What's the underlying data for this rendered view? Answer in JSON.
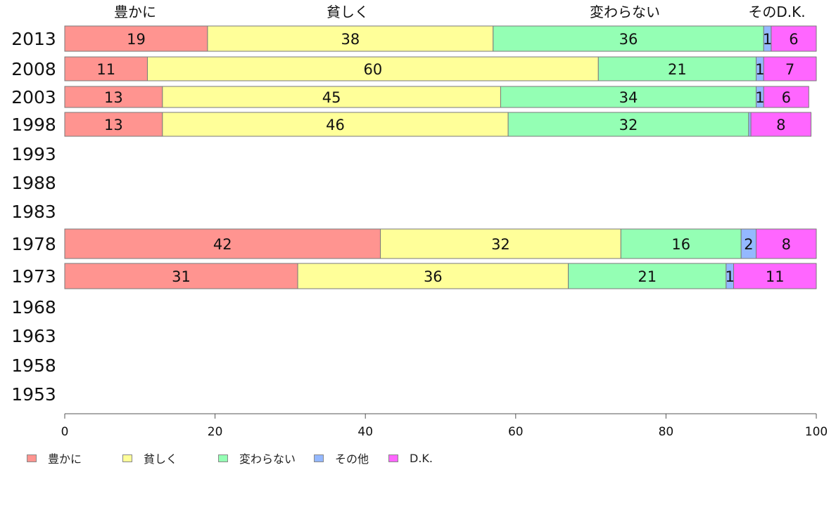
{
  "chart_data": {
    "type": "bar",
    "orientation": "horizontal",
    "stacked": true,
    "categories": [
      "2013",
      "2008",
      "2003",
      "1998",
      "1993",
      "1988",
      "1983",
      "1978",
      "1973",
      "1968",
      "1963",
      "1958",
      "1953"
    ],
    "series": [
      {
        "name": "豊かに",
        "color": "#ff9490",
        "values": [
          19,
          11,
          13,
          13,
          null,
          null,
          null,
          42,
          31,
          null,
          null,
          null,
          null
        ]
      },
      {
        "name": "貧しく",
        "color": "#ffff99",
        "values": [
          38,
          60,
          45,
          46,
          null,
          null,
          null,
          32,
          36,
          null,
          null,
          null,
          null
        ]
      },
      {
        "name": "変わらない",
        "color": "#94ffb4",
        "values": [
          36,
          21,
          34,
          32,
          null,
          null,
          null,
          16,
          21,
          null,
          null,
          null,
          null
        ]
      },
      {
        "name": "その他",
        "color": "#94b8ff",
        "values": [
          1,
          1,
          1,
          0.3,
          null,
          null,
          null,
          2,
          1,
          null,
          null,
          null,
          null
        ]
      },
      {
        "name": "D.K.",
        "color": "#ff66ff",
        "values": [
          6,
          7,
          6,
          8,
          null,
          null,
          null,
          8,
          11,
          null,
          null,
          null,
          null
        ]
      }
    ],
    "data_labels": [
      [
        "19",
        "38",
        "36",
        "1",
        "6"
      ],
      [
        "11",
        "60",
        "21",
        "1",
        "7"
      ],
      [
        "13",
        "45",
        "34",
        "1",
        "6"
      ],
      [
        "13",
        "46",
        "32",
        "",
        "8"
      ],
      [],
      [],
      [],
      [
        "42",
        "32",
        "16",
        "2",
        "8"
      ],
      [
        "31",
        "36",
        "21",
        "1",
        "11"
      ],
      [],
      [],
      [],
      []
    ],
    "top_labels": [
      "豊かに",
      "貧しく",
      "変わらない",
      "そのD.K."
    ],
    "xlim": [
      0,
      100
    ],
    "xticks": [
      0,
      20,
      40,
      60,
      80,
      100
    ],
    "grid": false,
    "legend_position": "bottom-left"
  },
  "legend": {
    "items": [
      {
        "label": "豊かに",
        "color": "#ff9490"
      },
      {
        "label": "貧しく",
        "color": "#ffff99"
      },
      {
        "label": "変わらない",
        "color": "#94ffb4"
      },
      {
        "label": "その他",
        "color": "#94b8ff"
      },
      {
        "label": "D.K.",
        "color": "#ff66ff"
      }
    ]
  }
}
